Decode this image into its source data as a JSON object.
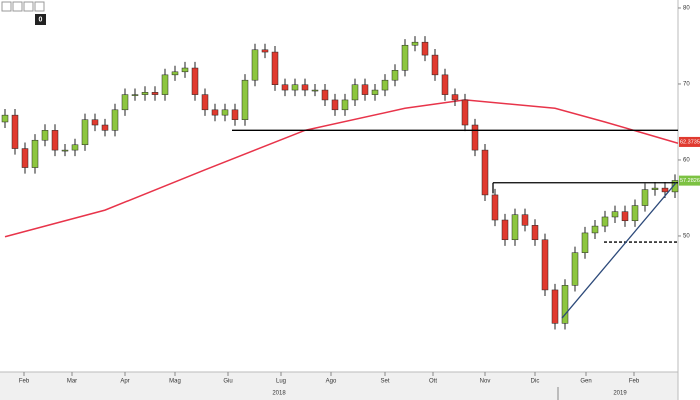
{
  "chart_data": {
    "type": "candlestick",
    "toolbar": {
      "badge": "0"
    },
    "x": [
      0,
      1,
      2,
      3,
      4,
      5,
      6,
      7,
      8,
      9,
      10,
      11,
      12,
      13,
      14,
      15,
      16,
      17,
      18,
      19,
      20,
      21,
      22,
      23,
      24,
      25,
      26,
      27,
      28,
      29,
      30,
      31,
      32,
      33,
      34,
      35,
      36,
      37,
      38,
      39,
      40,
      41,
      42,
      43,
      44,
      45,
      46,
      47,
      48,
      49,
      50,
      51,
      52,
      53,
      54,
      55,
      56,
      57,
      58,
      59,
      60,
      61,
      62,
      63,
      64,
      65,
      66,
      67
    ],
    "open": [
      65.0,
      65.9,
      61.5,
      59.0,
      62.6,
      63.9,
      61.3,
      61.3,
      62.0,
      65.3,
      64.6,
      63.9,
      66.6,
      68.6,
      68.6,
      68.9,
      68.6,
      71.2,
      71.6,
      72.1,
      68.6,
      66.6,
      65.9,
      66.6,
      65.3,
      70.5,
      74.5,
      74.2,
      69.9,
      69.2,
      69.9,
      69.2,
      69.2,
      67.9,
      66.6,
      67.9,
      69.9,
      68.6,
      69.2,
      70.5,
      71.8,
      75.1,
      75.5,
      73.8,
      71.2,
      68.6,
      67.9,
      64.6,
      61.3,
      55.4,
      52.1,
      49.5,
      52.8,
      51.4,
      49.5,
      42.9,
      38.5,
      43.5,
      47.8,
      50.4,
      51.3,
      52.5,
      53.2,
      52.0,
      54.0,
      56.1,
      56.3,
      55.8
    ],
    "high": [
      66.7,
      66.7,
      62.3,
      63.4,
      64.7,
      64.7,
      62.1,
      62.8,
      66.1,
      66.1,
      65.4,
      67.4,
      69.4,
      69.4,
      69.7,
      69.7,
      72.0,
      72.4,
      72.9,
      72.9,
      69.4,
      67.4,
      67.4,
      67.4,
      71.3,
      75.3,
      75.3,
      75.0,
      70.7,
      70.7,
      70.7,
      70.0,
      70.0,
      68.7,
      68.7,
      70.7,
      70.7,
      70.0,
      71.3,
      72.6,
      75.9,
      76.3,
      76.3,
      74.6,
      72.0,
      69.4,
      68.7,
      65.4,
      62.1,
      56.2,
      52.9,
      53.6,
      53.6,
      52.2,
      50.3,
      43.7,
      44.3,
      48.6,
      51.2,
      52.1,
      53.3,
      54.0,
      54.0,
      54.8,
      56.9,
      57.1,
      57.1,
      58.1
    ],
    "low": [
      64.2,
      60.7,
      58.2,
      58.2,
      61.8,
      60.5,
      60.5,
      60.5,
      61.2,
      63.8,
      63.1,
      63.1,
      65.8,
      67.8,
      67.8,
      67.8,
      67.8,
      70.4,
      70.8,
      67.8,
      65.8,
      65.1,
      65.1,
      64.5,
      64.5,
      69.7,
      73.4,
      69.1,
      68.4,
      68.4,
      68.4,
      68.4,
      67.1,
      65.8,
      65.8,
      67.1,
      67.8,
      67.8,
      68.4,
      69.7,
      71.0,
      74.3,
      73.0,
      70.4,
      67.8,
      67.1,
      63.8,
      60.5,
      54.6,
      51.3,
      48.7,
      48.7,
      50.6,
      48.7,
      42.1,
      37.7,
      37.7,
      42.7,
      47.0,
      49.6,
      50.5,
      51.7,
      51.2,
      51.2,
      53.2,
      55.3,
      55.0,
      55.0
    ],
    "close": [
      65.9,
      61.5,
      59.0,
      62.6,
      63.9,
      61.3,
      61.3,
      62.0,
      65.3,
      64.6,
      63.9,
      66.6,
      68.6,
      68.6,
      68.9,
      68.6,
      71.2,
      71.6,
      72.1,
      68.6,
      66.6,
      65.9,
      66.6,
      65.3,
      70.5,
      74.5,
      74.2,
      69.9,
      69.2,
      69.9,
      69.2,
      69.2,
      67.9,
      66.6,
      67.9,
      69.9,
      68.6,
      69.2,
      70.5,
      71.8,
      75.1,
      75.5,
      73.8,
      71.2,
      68.6,
      67.9,
      64.6,
      61.3,
      55.4,
      52.1,
      49.5,
      52.8,
      51.4,
      49.5,
      42.9,
      38.5,
      43.5,
      47.8,
      50.4,
      51.3,
      52.5,
      53.2,
      52.0,
      54.0,
      56.1,
      56.3,
      55.8,
      57.3
    ],
    "up_color": "#8dc63f",
    "down_color": "#e03a2f",
    "moving_average": {
      "color": "#e8344a",
      "x": [
        0,
        10,
        20,
        30,
        40,
        46,
        55,
        60,
        67.3
      ],
      "values": [
        49.9,
        53.4,
        58.7,
        63.9,
        66.8,
        67.9,
        66.8,
        65.0,
        62.2
      ]
    },
    "lines": [
      {
        "x": [
          22.7,
          67.3
        ],
        "values": [
          63.9,
          63.9
        ],
        "color": "#000000",
        "dashed": false
      },
      {
        "x": [
          48.8,
          67.3
        ],
        "values": [
          57.0,
          57.0
        ],
        "color": "#000000",
        "dashed": false
      },
      {
        "x": [
          48.8,
          48.8
        ],
        "values": [
          57.0,
          55.6
        ],
        "color": "#000000",
        "dashed": false
      },
      {
        "x": [
          59.9,
          67.3
        ],
        "values": [
          49.2,
          49.2
        ],
        "color": "#000000",
        "dashed": true
      },
      {
        "x": [
          55.7,
          67.1
        ],
        "values": [
          39.2,
          57.0
        ],
        "color": "#2d4a7a",
        "dashed": false
      }
    ],
    "price_labels": [
      {
        "value": 62.3735,
        "color": "#e03a2f"
      },
      {
        "value": 57.2826,
        "color": "#7cc242"
      }
    ],
    "ylim": [
      32.1,
      81.05
    ],
    "yticks": [
      50,
      60,
      70,
      80
    ],
    "xlim": [
      -0.5,
      67.3
    ],
    "xticks": [
      {
        "value": 1.9,
        "label": "Feb"
      },
      {
        "value": 6.7,
        "label": "Mar"
      },
      {
        "value": 12,
        "label": "Apr"
      },
      {
        "value": 17,
        "label": "Mag"
      },
      {
        "value": 22.3,
        "label": "Giu"
      },
      {
        "value": 27.6,
        "label": "Lug"
      },
      {
        "value": 32.6,
        "label": "Ago"
      },
      {
        "value": 38,
        "label": "Set"
      },
      {
        "value": 42.8,
        "label": "Ott"
      },
      {
        "value": 48,
        "label": "Nov"
      },
      {
        "value": 53,
        "label": "Dic"
      },
      {
        "value": 58.1,
        "label": "Gen"
      },
      {
        "value": 62.9,
        "label": "Feb"
      }
    ],
    "year_labels": [
      {
        "value": 27.4,
        "label": "2018"
      },
      {
        "value": 61.5,
        "label": "2019"
      }
    ],
    "year_breaks": [
      55.3
    ]
  }
}
